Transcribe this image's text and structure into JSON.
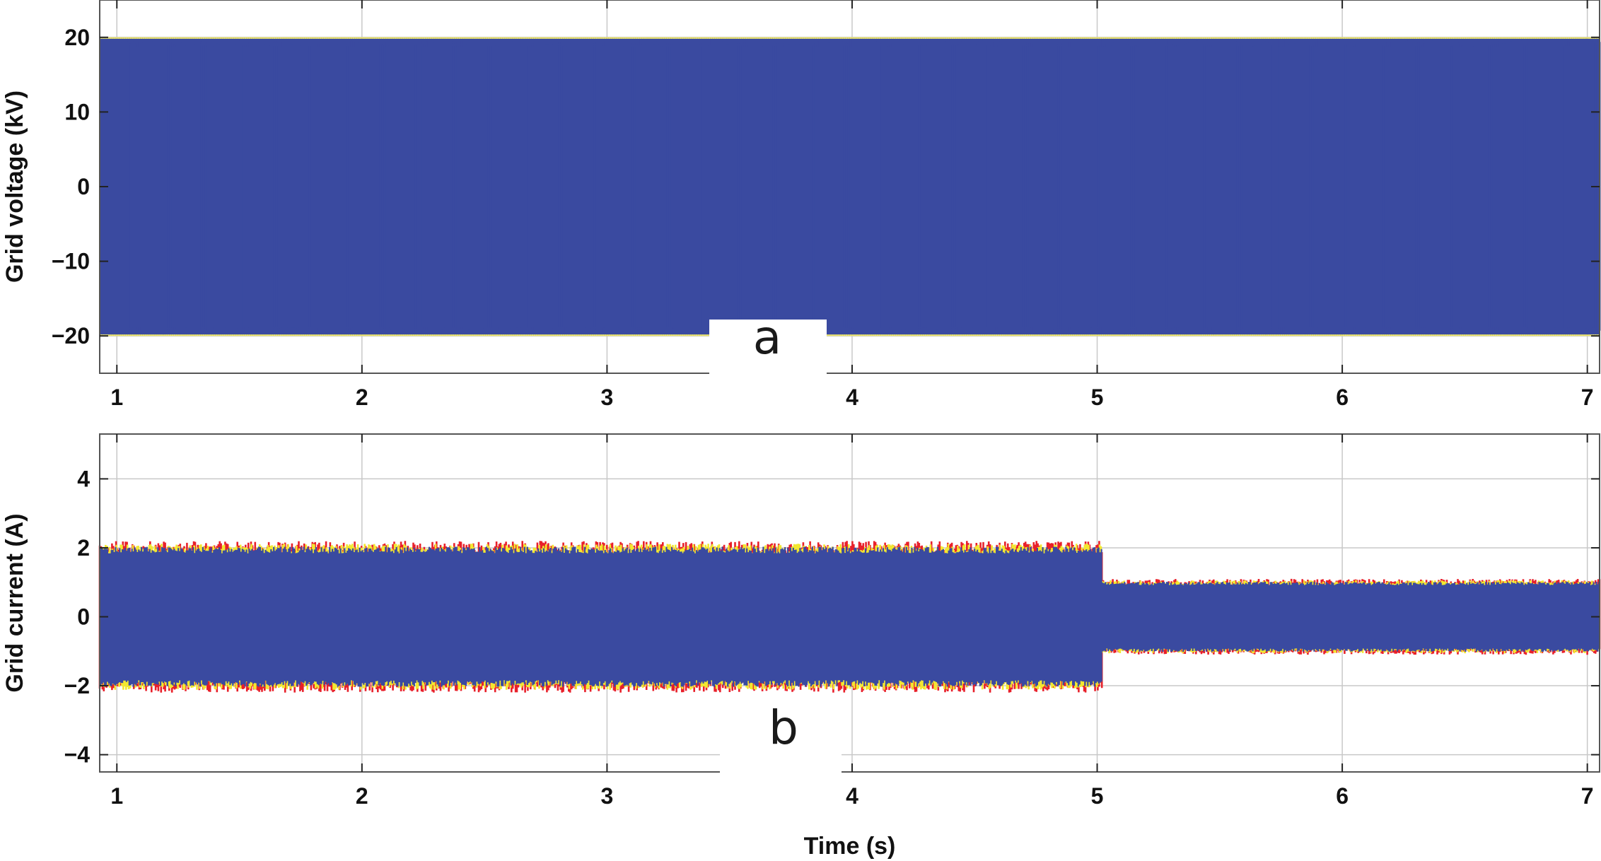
{
  "chart_data": [
    {
      "panel": "a",
      "type": "line",
      "xlim": [
        0.93,
        7.05
      ],
      "ylim": [
        -25,
        25
      ],
      "ylabel": "Grid voltage (kV)",
      "xlabel": "",
      "xticks": [
        1,
        2,
        3,
        4,
        5,
        6,
        7
      ],
      "yticks": [
        -20,
        -10,
        0,
        10,
        20
      ],
      "grid": true,
      "envelope": [
        {
          "x": 0.93,
          "min": -20,
          "max": 20
        },
        {
          "x": 7.05,
          "min": -20,
          "max": 20
        }
      ],
      "series": [
        {
          "color": "#3a4aa0",
          "amplitude": 20
        },
        {
          "color": "#f2e84a",
          "amplitude": 20
        }
      ]
    },
    {
      "panel": "b",
      "type": "line",
      "xlim": [
        0.93,
        7.05
      ],
      "ylim": [
        -4.5,
        5.3
      ],
      "ylabel": "Grid current (A)",
      "xlabel": "Time (s)",
      "xticks": [
        1,
        2,
        3,
        4,
        5,
        6,
        7
      ],
      "yticks": [
        -4,
        -2,
        0,
        2,
        4
      ],
      "grid": true,
      "envelope": [
        {
          "x": 0.93,
          "min": -2.0,
          "max": 2.0
        },
        {
          "x": 5.0,
          "min": -2.0,
          "max": 2.0
        },
        {
          "x": 5.02,
          "min": -1.0,
          "max": 1.0
        },
        {
          "x": 7.05,
          "min": -1.0,
          "max": 1.0
        }
      ],
      "series": [
        {
          "color": "#3a4aa0"
        },
        {
          "color": "#e8202a"
        },
        {
          "color": "#f2e830"
        }
      ]
    }
  ],
  "panel_labels": [
    "a",
    "b"
  ],
  "colors": {
    "wave": "#3a4aa0",
    "phase_red": "#e8202a",
    "phase_yellow": "#f2e830",
    "grid": "#c8c8c8",
    "axis": "#555555"
  }
}
